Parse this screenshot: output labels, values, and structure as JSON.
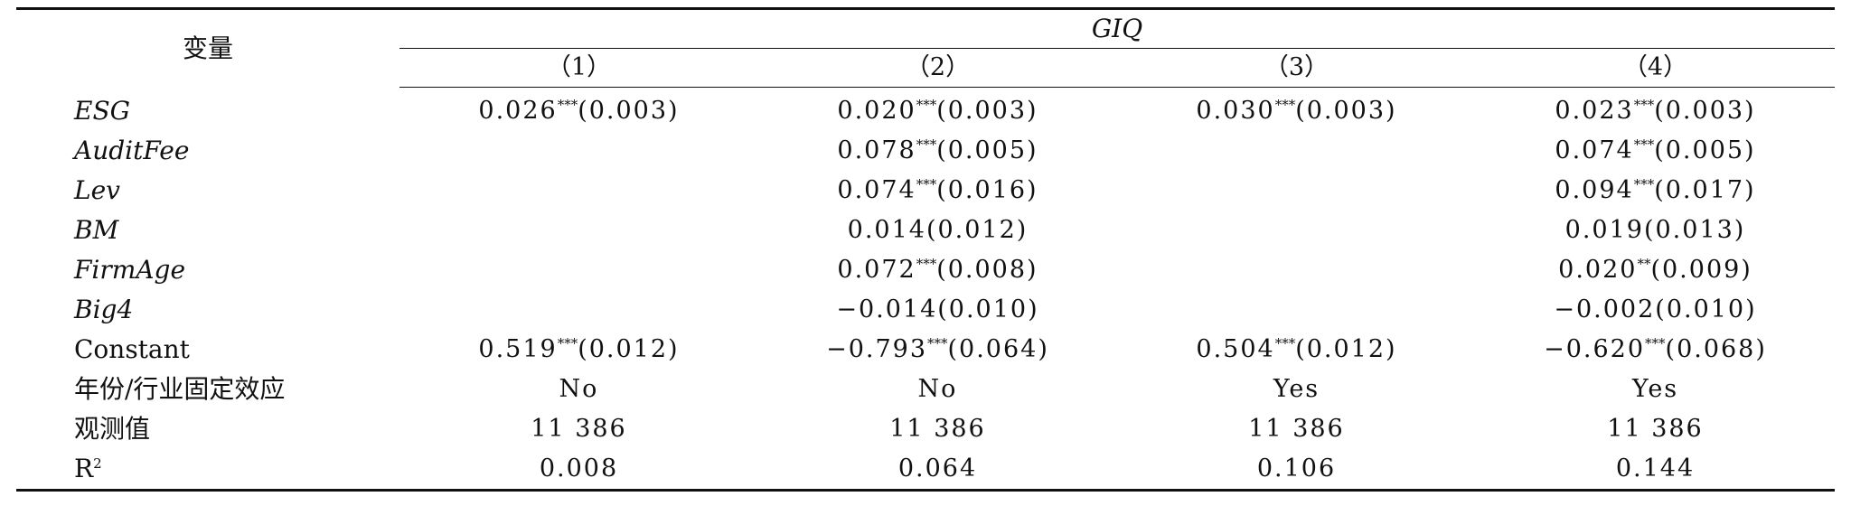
{
  "header": {
    "var_label": "变量",
    "group_label": "GIQ",
    "columns": [
      "（1）",
      "（2）",
      "（3）",
      "（4）"
    ]
  },
  "rows": [
    {
      "name": "ESG",
      "italic": true,
      "cells": [
        {
          "val": "0.026",
          "sig": "***",
          "se": "(0.003)"
        },
        {
          "val": "0.020",
          "sig": "***",
          "se": "(0.003)"
        },
        {
          "val": "0.030",
          "sig": "***",
          "se": "(0.003)"
        },
        {
          "val": "0.023",
          "sig": "***",
          "se": "(0.003)"
        }
      ]
    },
    {
      "name": "AuditFee",
      "italic": true,
      "cells": [
        {
          "val": "",
          "sig": "",
          "se": ""
        },
        {
          "val": "0.078",
          "sig": "***",
          "se": "(0.005)"
        },
        {
          "val": "",
          "sig": "",
          "se": ""
        },
        {
          "val": "0.074",
          "sig": "***",
          "se": "(0.005)"
        }
      ]
    },
    {
      "name": "Lev",
      "italic": true,
      "cells": [
        {
          "val": "",
          "sig": "",
          "se": ""
        },
        {
          "val": "0.074",
          "sig": "***",
          "se": "(0.016)"
        },
        {
          "val": "",
          "sig": "",
          "se": ""
        },
        {
          "val": "0.094",
          "sig": "***",
          "se": "(0.017)"
        }
      ]
    },
    {
      "name": "BM",
      "italic": true,
      "cells": [
        {
          "val": "",
          "sig": "",
          "se": ""
        },
        {
          "val": "0.014",
          "sig": "",
          "se": "(0.012)"
        },
        {
          "val": "",
          "sig": "",
          "se": ""
        },
        {
          "val": "0.019",
          "sig": "",
          "se": "(0.013)"
        }
      ]
    },
    {
      "name": "FirmAge",
      "italic": true,
      "cells": [
        {
          "val": "",
          "sig": "",
          "se": ""
        },
        {
          "val": "0.072",
          "sig": "***",
          "se": "(0.008)"
        },
        {
          "val": "",
          "sig": "",
          "se": ""
        },
        {
          "val": "0.020",
          "sig": "**",
          "se": "(0.009)"
        }
      ]
    },
    {
      "name": "Big4",
      "italic": true,
      "cells": [
        {
          "val": "",
          "sig": "",
          "se": ""
        },
        {
          "val": "−0.014",
          "sig": "",
          "se": "(0.010)"
        },
        {
          "val": "",
          "sig": "",
          "se": ""
        },
        {
          "val": "−0.002",
          "sig": "",
          "se": "(0.010)"
        }
      ]
    },
    {
      "name": "Constant",
      "italic": false,
      "cells": [
        {
          "val": "0.519",
          "sig": "***",
          "se": "(0.012)"
        },
        {
          "val": "−0.793",
          "sig": "***",
          "se": "(0.064)"
        },
        {
          "val": "0.504",
          "sig": "***",
          "se": "(0.012)"
        },
        {
          "val": "−0.620",
          "sig": "***",
          "se": "(0.068)"
        }
      ]
    }
  ],
  "footer_rows": [
    {
      "name": "年份/行业固定效应",
      "values": [
        "No",
        "No",
        "Yes",
        "Yes"
      ]
    },
    {
      "name": "观测值",
      "values": [
        "11 386",
        "11 386",
        "11 386",
        "11 386"
      ]
    }
  ],
  "r2_row": {
    "name_base": "R",
    "name_sup": "2",
    "values": [
      "0.008",
      "0.064",
      "0.106",
      "0.144"
    ]
  }
}
